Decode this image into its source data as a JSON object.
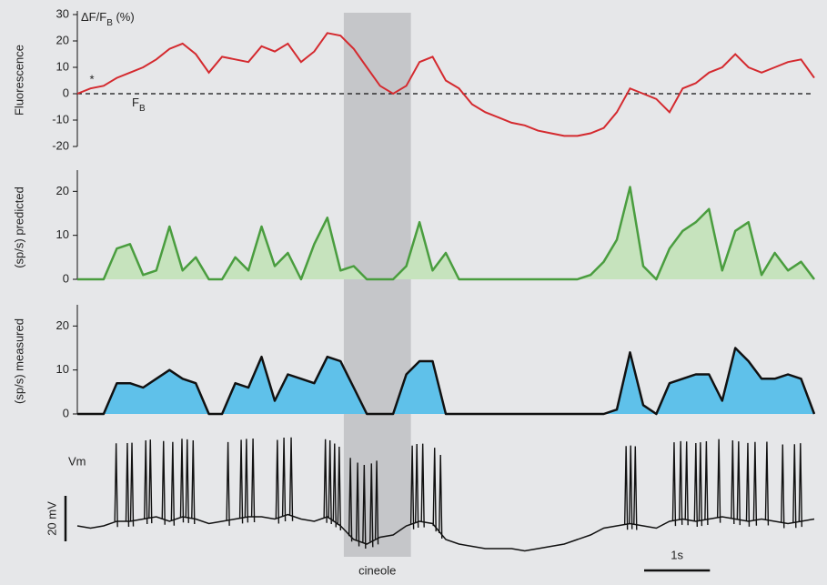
{
  "stimulus": {
    "label": "cineole",
    "xlim": [
      4.05,
      5.07
    ]
  },
  "chart_data": [
    {
      "type": "line",
      "y_label": "Fluorescence",
      "annotations": {
        "units": [
          "ΔF/F",
          "B",
          " (%)"
        ],
        "baseline": [
          "F",
          "B"
        ],
        "marker": "*"
      },
      "reference_line": 0,
      "xlim": [
        0,
        11.2
      ],
      "ylim": [
        -20,
        30
      ],
      "yticks": [
        -20,
        -10,
        0,
        10,
        20,
        30
      ],
      "x": [
        0,
        0.2,
        0.4,
        0.6,
        0.8,
        1,
        1.2,
        1.4,
        1.6,
        1.8,
        2,
        2.2,
        2.4,
        2.6,
        2.8,
        3,
        3.2,
        3.4,
        3.6,
        3.8,
        4,
        4.2,
        4.4,
        4.6,
        4.8,
        5,
        5.2,
        5.4,
        5.6,
        5.8,
        6,
        6.2,
        6.4,
        6.6,
        6.8,
        7,
        7.2,
        7.4,
        7.6,
        7.8,
        8,
        8.2,
        8.4,
        8.6,
        8.8,
        9,
        9.2,
        9.4,
        9.6,
        9.8,
        10,
        10.2,
        10.4,
        10.6,
        10.8,
        11,
        11.2
      ],
      "series": [
        {
          "color": "#d42a2f",
          "values": [
            0,
            2,
            3,
            6,
            8,
            10,
            13,
            17,
            19,
            15,
            8,
            14,
            13,
            12,
            18,
            16,
            19,
            12,
            16,
            23,
            22,
            17,
            10,
            3,
            0,
            3,
            12,
            14,
            5,
            2,
            -4,
            -7,
            -9,
            -11,
            -12,
            -14,
            -15,
            -16,
            -16,
            -15,
            -13,
            -7,
            2,
            0,
            -2,
            -7,
            2,
            4,
            8,
            10,
            15,
            10,
            8,
            10,
            12,
            13,
            6
          ]
        }
      ]
    },
    {
      "type": "area",
      "y_label": "(sp/s) predicted",
      "xlim": [
        0,
        11.2
      ],
      "ylim": [
        0,
        24
      ],
      "yticks": [
        0,
        10,
        20
      ],
      "x": [
        0,
        0.2,
        0.4,
        0.6,
        0.8,
        1,
        1.2,
        1.4,
        1.6,
        1.8,
        2,
        2.2,
        2.4,
        2.6,
        2.8,
        3,
        3.2,
        3.4,
        3.6,
        3.8,
        4,
        4.2,
        4.4,
        4.6,
        4.8,
        5,
        5.2,
        5.4,
        5.6,
        5.8,
        6,
        6.2,
        6.4,
        6.6,
        6.8,
        7,
        7.2,
        7.4,
        7.6,
        7.8,
        8,
        8.2,
        8.4,
        8.6,
        8.8,
        9,
        9.2,
        9.4,
        9.6,
        9.8,
        10,
        10.2,
        10.4,
        10.6,
        10.8,
        11,
        11.2
      ],
      "series": [
        {
          "color": "#4a9d3f",
          "fill": "#c6e3bd",
          "values": [
            0,
            0,
            0,
            7,
            8,
            1,
            2,
            12,
            2,
            5,
            0,
            0,
            5,
            2,
            12,
            3,
            6,
            0,
            8,
            14,
            2,
            3,
            0,
            0,
            0,
            3,
            13,
            2,
            6,
            0,
            0,
            0,
            0,
            0,
            0,
            0,
            0,
            0,
            0,
            1,
            4,
            9,
            21,
            3,
            0,
            7,
            11,
            13,
            16,
            2,
            11,
            13,
            1,
            6,
            2,
            4,
            0
          ]
        }
      ]
    },
    {
      "type": "area",
      "y_label": "(sp/s) measured",
      "xlim": [
        0,
        11.2
      ],
      "ylim": [
        0,
        24
      ],
      "yticks": [
        0,
        10,
        20
      ],
      "x": [
        0,
        0.2,
        0.4,
        0.6,
        0.8,
        1,
        1.2,
        1.4,
        1.6,
        1.8,
        2,
        2.2,
        2.4,
        2.6,
        2.8,
        3,
        3.2,
        3.4,
        3.6,
        3.8,
        4,
        4.2,
        4.4,
        4.6,
        4.8,
        5,
        5.2,
        5.4,
        5.6,
        5.8,
        6,
        6.2,
        6.4,
        6.6,
        6.8,
        7,
        7.2,
        7.4,
        7.6,
        7.8,
        8,
        8.2,
        8.4,
        8.6,
        8.8,
        9,
        9.2,
        9.4,
        9.6,
        9.8,
        10,
        10.2,
        10.4,
        10.6,
        10.8,
        11,
        11.2
      ],
      "series": [
        {
          "color": "#111111",
          "fill": "#5fc1ea",
          "values": [
            0,
            0,
            0,
            7,
            7,
            6,
            8,
            10,
            8,
            7,
            0,
            0,
            7,
            6,
            13,
            3,
            9,
            8,
            7,
            13,
            12,
            6,
            0,
            0,
            0,
            9,
            12,
            12,
            0,
            0,
            0,
            0,
            0,
            0,
            0,
            0,
            0,
            0,
            0,
            0,
            0,
            1,
            14,
            2,
            0,
            7,
            8,
            9,
            9,
            3,
            15,
            12,
            8,
            8,
            9,
            8,
            0
          ]
        }
      ]
    },
    {
      "type": "trace",
      "y_label": "Vm",
      "color": "#111111",
      "xlim": [
        0,
        11.2
      ],
      "x": [
        0,
        0.2,
        0.4,
        0.6,
        0.8,
        1,
        1.2,
        1.4,
        1.6,
        1.8,
        2,
        2.2,
        2.4,
        2.6,
        2.8,
        3,
        3.2,
        3.4,
        3.6,
        3.8,
        4,
        4.2,
        4.4,
        4.6,
        4.8,
        5,
        5.2,
        5.4,
        5.6,
        5.8,
        6,
        6.2,
        6.4,
        6.6,
        6.8,
        7,
        7.2,
        7.4,
        7.6,
        7.8,
        8,
        8.2,
        8.4,
        8.6,
        8.8,
        9,
        9.2,
        9.4,
        9.6,
        9.8,
        10,
        10.2,
        10.4,
        10.6,
        10.8,
        11,
        11.2
      ],
      "values": [
        0,
        -1,
        0,
        2,
        2,
        3,
        4,
        2,
        4,
        3,
        1,
        2,
        3,
        4,
        4,
        3,
        5,
        3,
        2,
        4,
        0,
        -6,
        -8,
        -5,
        -4,
        0,
        2,
        1,
        -6,
        -8,
        -9,
        -10,
        -10,
        -10,
        -11,
        -10,
        -9,
        -8,
        -6,
        -4,
        -1,
        0,
        1,
        0,
        -1,
        2,
        3,
        2,
        3,
        4,
        3,
        2,
        3,
        2,
        1,
        2,
        3
      ],
      "spike_times": [
        0.59,
        0.76,
        0.83,
        1.04,
        1.11,
        1.31,
        1.45,
        1.59,
        1.67,
        1.76,
        2.29,
        2.49,
        2.57,
        2.67,
        3.04,
        3.14,
        3.25,
        3.77,
        3.84,
        3.91,
        3.98,
        4.15,
        4.26,
        4.36,
        4.47,
        4.55,
        5.09,
        5.16,
        5.25,
        5.43,
        5.52,
        8.34,
        8.41,
        8.48,
        9.07,
        9.17,
        9.26,
        9.4,
        9.47,
        9.56,
        9.75,
        9.96,
        10.05,
        10.19,
        10.3,
        10.48,
        10.72,
        10.9,
        10.99
      ],
      "scale_bars": [
        {
          "axis": "x",
          "value": 1,
          "label": "1s"
        },
        {
          "axis": "y",
          "value": 20,
          "label": "20 mV"
        }
      ]
    }
  ]
}
